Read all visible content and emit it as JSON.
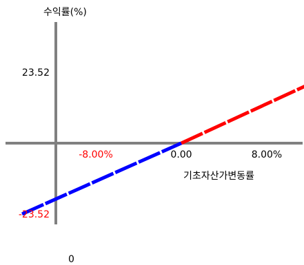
{
  "chart_data": {
    "type": "line",
    "ylabel": "수익률(%)",
    "xlabel": "기초자산가변동률",
    "origin_label": "0",
    "x_ticks": [
      {
        "value": -8,
        "label": "-8.00%",
        "color": "#ff0000"
      },
      {
        "value": 0,
        "label": "0.00",
        "color": "#000000"
      },
      {
        "value": 8,
        "label": "8.00%",
        "color": "#000000"
      }
    ],
    "y_ticks": [
      {
        "value": 23.52,
        "label": "23.52",
        "color": "#000000"
      },
      {
        "value": -23.52,
        "label": "-23.52",
        "color": "#ff0000"
      }
    ],
    "series": [
      {
        "color": "#0000ff",
        "x": [
          -14.9,
          0
        ],
        "y": [
          -23.52,
          0
        ]
      },
      {
        "color": "#ff0000",
        "x": [
          0,
          14.4
        ],
        "y": [
          0,
          23.52
        ]
      }
    ],
    "grid": false,
    "axis_color": "#808080"
  }
}
